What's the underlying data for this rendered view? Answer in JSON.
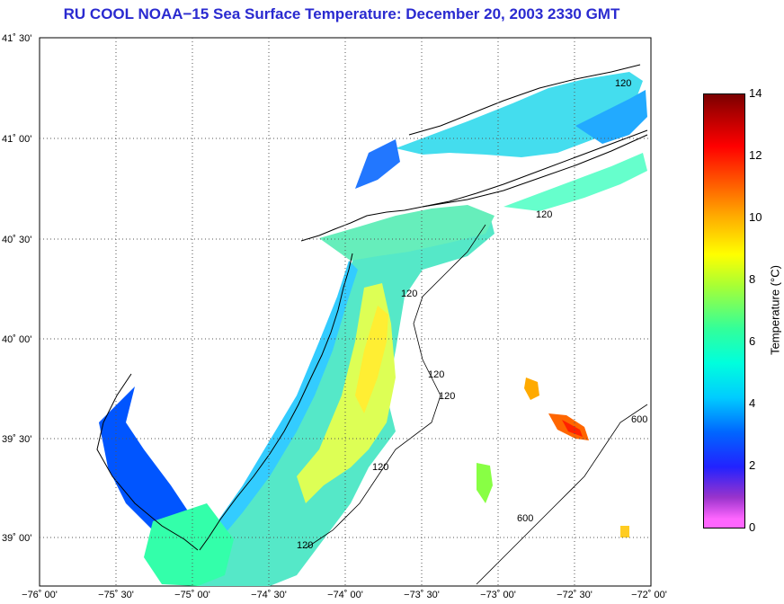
{
  "title": "RU COOL  NOAA−15  Sea Surface Temperature:  December 20, 2003 2330 GMT",
  "map": {
    "lat_labels": [
      "41˚ 30'",
      "41˚ 00'",
      "40˚ 30'",
      "40˚ 00'",
      "39˚ 30'",
      "39˚ 00'"
    ],
    "lon_labels": [
      "−76˚ 00'",
      "−75˚ 30'",
      "−75˚ 00'",
      "−74˚ 30'",
      "−74˚ 00'",
      "−73˚ 30'",
      "−73˚ 00'",
      "−72˚ 30'",
      "−72˚ 00'"
    ],
    "contour_labels": [
      "120",
      "120",
      "120",
      "120",
      "120",
      "120",
      "120",
      "600",
      "600"
    ],
    "land_color": "#ffffff",
    "coast_color": "#000000"
  },
  "colorbar": {
    "title": "Temperature (°C)",
    "ticks": [
      "14",
      "12",
      "10",
      "8",
      "6",
      "4",
      "2",
      "0"
    ],
    "range": [
      0,
      14
    ]
  }
}
